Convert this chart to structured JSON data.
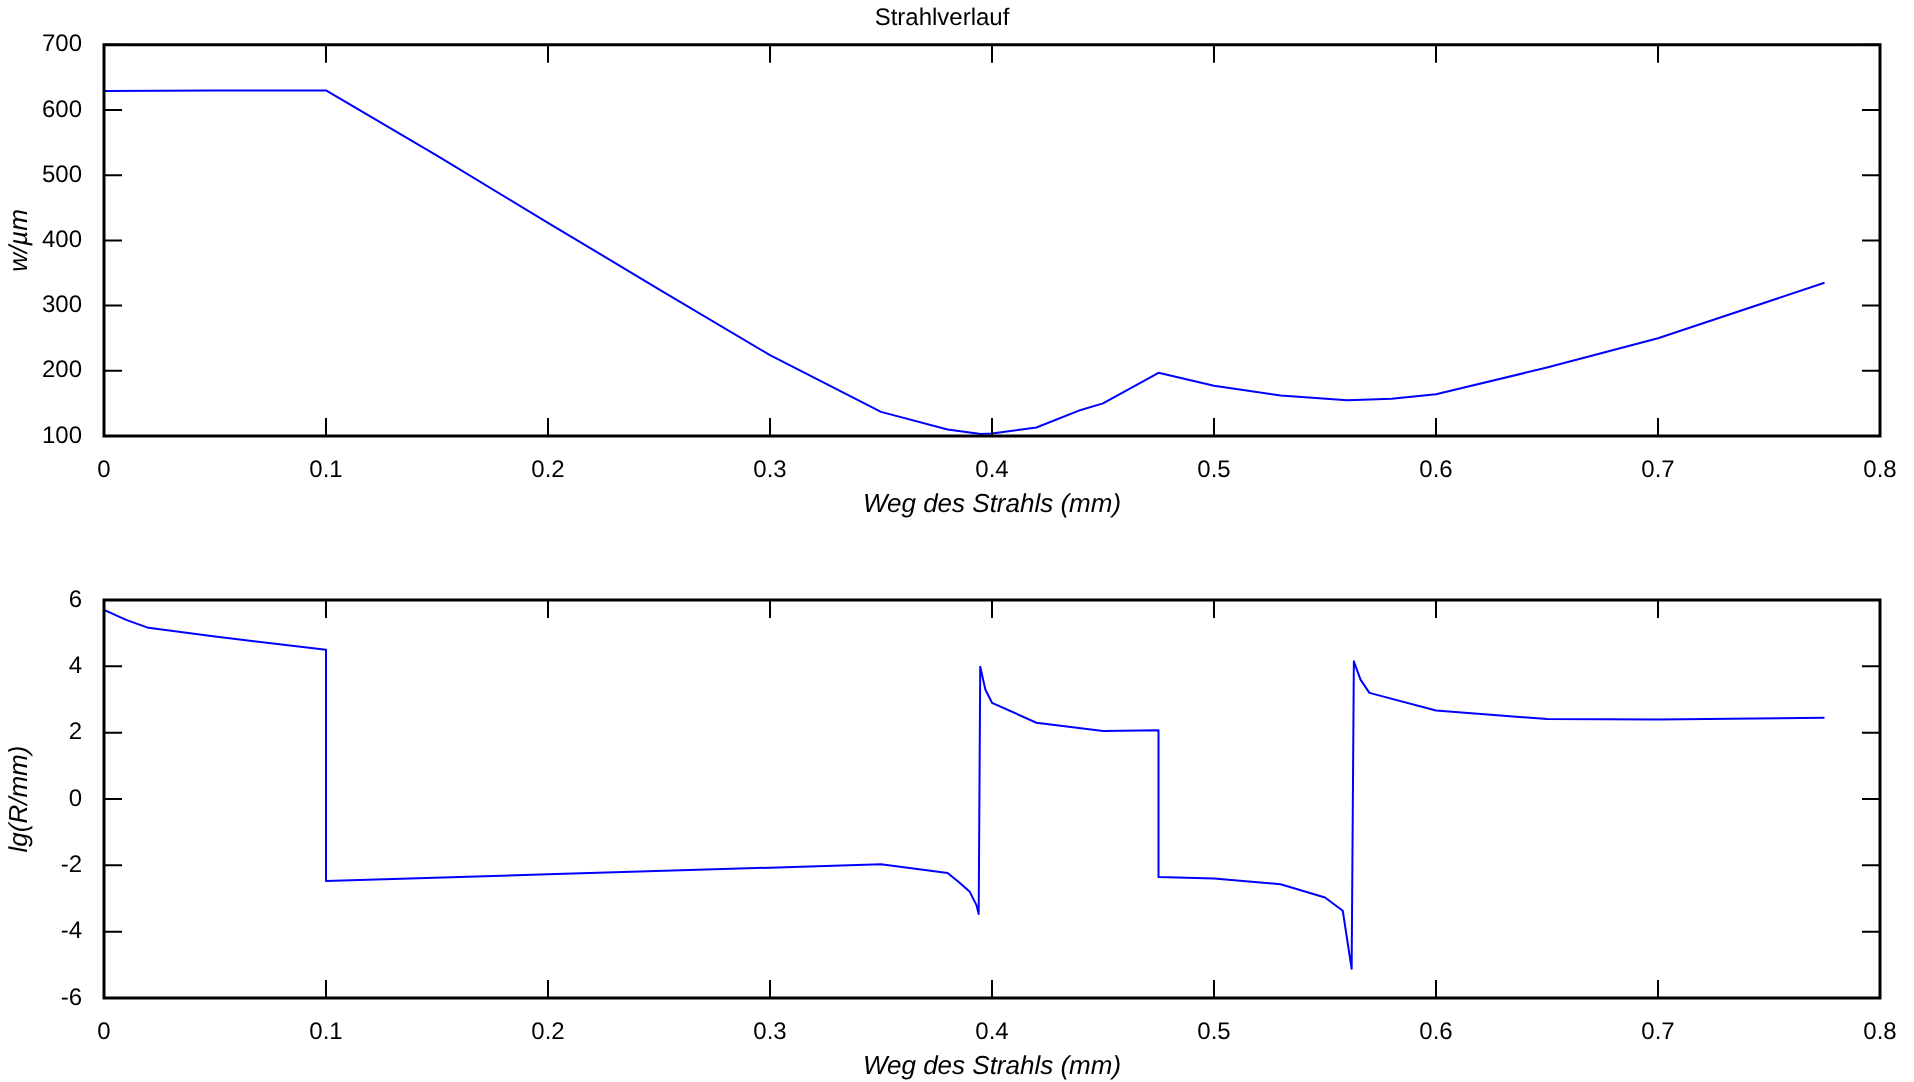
{
  "chart_data": [
    {
      "type": "line",
      "title": "Strahlverlauf",
      "xlabel": "Weg des Strahls (mm)",
      "ylabel": "w/µm",
      "marker": "none",
      "xlim": [
        0,
        0.8
      ],
      "xticks": [
        0,
        0.1,
        0.2,
        0.3,
        0.4,
        0.5,
        0.6,
        0.7,
        0.8
      ],
      "ylim": [
        100,
        700
      ],
      "yticks": [
        100,
        200,
        300,
        400,
        500,
        600,
        700
      ],
      "series": [
        {
          "color": "#0000ff",
          "x": [
            0,
            0.05,
            0.1,
            0.15,
            0.2,
            0.25,
            0.3,
            0.35,
            0.38,
            0.395,
            0.4,
            0.42,
            0.44,
            0.45,
            0.475,
            0.5,
            0.53,
            0.56,
            0.58,
            0.6,
            0.65,
            0.7,
            0.775
          ],
          "values": [
            629,
            630,
            630,
            530,
            427,
            325,
            224,
            137,
            110,
            103,
            104,
            113,
            140,
            150,
            197,
            177,
            162,
            155,
            157,
            164,
            205,
            250,
            335
          ]
        }
      ]
    },
    {
      "type": "line",
      "xlabel": "Weg des Strahls (mm)",
      "ylabel": "lg(R/mm)",
      "marker": "none",
      "xlim": [
        0,
        0.8
      ],
      "xticks": [
        0,
        0.1,
        0.2,
        0.3,
        0.4,
        0.5,
        0.6,
        0.7,
        0.8
      ],
      "ylim": [
        -6,
        6
      ],
      "yticks": [
        -6,
        -4,
        -2,
        0,
        2,
        4,
        6
      ],
      "series": [
        {
          "color": "#0000ff",
          "x": [
            0,
            0.01,
            0.02,
            0.05,
            0.1,
            0.1,
            0.2,
            0.3,
            0.35,
            0.38,
            0.385,
            0.39,
            0.393,
            0.394,
            0.3947,
            0.397,
            0.4,
            0.42,
            0.45,
            0.475,
            0.475,
            0.5,
            0.53,
            0.55,
            0.558,
            0.562,
            0.563,
            0.566,
            0.57,
            0.6,
            0.65,
            0.7,
            0.775
          ],
          "values": [
            5.7,
            5.4,
            5.16,
            4.9,
            4.5,
            -2.47,
            -2.27,
            -2.07,
            -1.97,
            -2.23,
            -2.5,
            -2.8,
            -3.2,
            -3.47,
            3.99,
            3.3,
            2.9,
            2.3,
            2.05,
            2.07,
            -2.35,
            -2.4,
            -2.57,
            -2.97,
            -3.37,
            -5.12,
            4.15,
            3.6,
            3.2,
            2.67,
            2.41,
            2.4,
            2.45
          ]
        }
      ]
    }
  ]
}
